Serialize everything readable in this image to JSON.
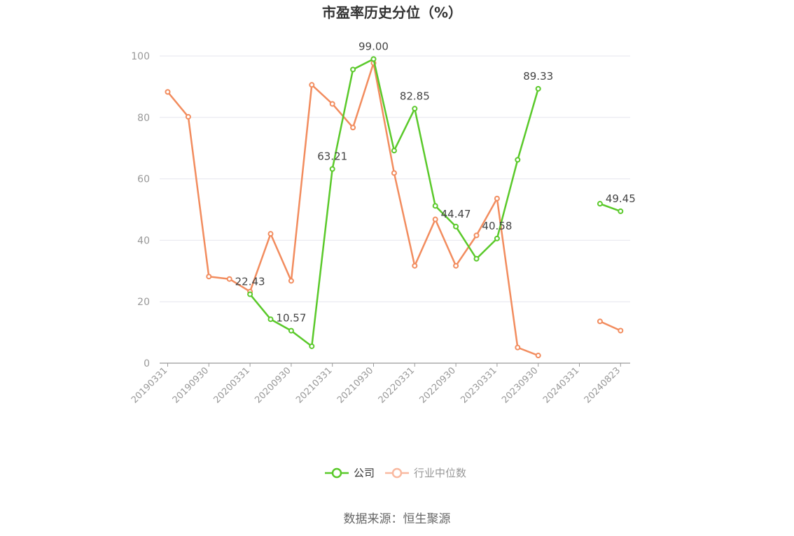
{
  "chart_data": {
    "type": "line",
    "title": "市盈率历史分位（%）",
    "source": "数据来源：恒生聚源",
    "y_ticks": [
      "0",
      "20",
      "40",
      "60",
      "80",
      "100"
    ],
    "ylim": [
      0,
      100
    ],
    "x": [
      "20190331",
      "20190630",
      "20190930",
      "20191231",
      "20200331",
      "20200630",
      "20200930",
      "20201231",
      "20210331",
      "20210630",
      "20210930",
      "20211231",
      "20220331",
      "20220630",
      "20220930",
      "20221231",
      "20230331",
      "20230630",
      "20230930",
      "20231231",
      "20240331",
      "20240630",
      "20240823"
    ],
    "x_tick_labels": [
      "20190331",
      "20190930",
      "20200331",
      "20200930",
      "20210331",
      "20210930",
      "20220331",
      "20220930",
      "20230331",
      "20230930",
      "20240331",
      "20240823"
    ],
    "series": [
      {
        "name": "公司",
        "color": "#5ac92a",
        "values": [
          null,
          null,
          null,
          null,
          22.43,
          14.3,
          10.57,
          5.5,
          63.21,
          95.6,
          99.0,
          69.2,
          82.85,
          51.2,
          44.47,
          34.0,
          40.58,
          66.2,
          89.33,
          null,
          null,
          51.9,
          49.45
        ],
        "labels": [
          null,
          null,
          null,
          null,
          "22.43",
          null,
          "10.57",
          null,
          "63.21",
          null,
          "99.00",
          null,
          "82.85",
          null,
          "44.47",
          null,
          "40.58",
          null,
          "89.33",
          null,
          null,
          null,
          "49.45"
        ]
      },
      {
        "name": "行业中位数",
        "color": "#f28c5e",
        "values": [
          88.3,
          80.2,
          28.2,
          27.4,
          23.3,
          42.1,
          26.8,
          90.6,
          84.4,
          76.7,
          97.7,
          61.9,
          31.7,
          46.8,
          31.7,
          41.6,
          53.6,
          5.1,
          2.5,
          null,
          null,
          13.6,
          10.6
        ]
      }
    ],
    "legend": [
      {
        "name": "公司",
        "color": "#5ac92a",
        "text_color": "#333333"
      },
      {
        "name": "行业中位数",
        "color": "#f9b9a0",
        "text_color": "#999999"
      }
    ],
    "legend_position": "bottom",
    "grid": true
  }
}
